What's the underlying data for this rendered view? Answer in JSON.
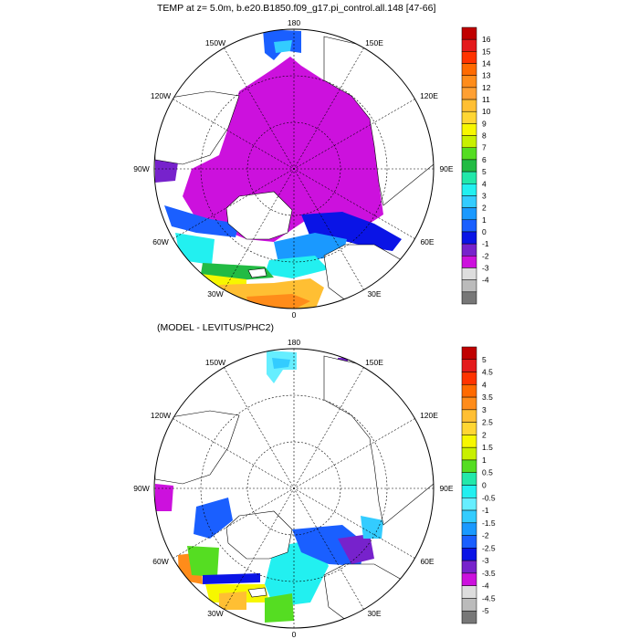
{
  "panel_top": {
    "title": "TEMP at z=   5.0m, b.e20.B1850.f09_g17.pi_control.all.148 [47-66]",
    "lon_labels": {
      "n": "180",
      "s": "0",
      "nw1": "150W",
      "ne1": "150E",
      "nw2": "120W",
      "ne2": "120E",
      "w": "90W",
      "e": "90E",
      "sw2": "60W",
      "se2": "60E",
      "sw1": "30W",
      "se1": "30E"
    },
    "colorbar": {
      "labels": [
        "16",
        "15",
        "14",
        "13",
        "12",
        "11",
        "10",
        "9",
        "8",
        "7",
        "6",
        "5",
        "4",
        "3",
        "2",
        "1",
        "0",
        "-1",
        "-2",
        "-3",
        "-4"
      ],
      "colors": [
        "#c00000",
        "#e41a1c",
        "#ff3300",
        "#ff6a00",
        "#ff8c1a",
        "#ffa033",
        "#ffbf33",
        "#ffd633",
        "#f7f700",
        "#c8f000",
        "#55dd22",
        "#22bb44",
        "#22e8aa",
        "#22f0f0",
        "#33ccff",
        "#1a99ff",
        "#1a5fff",
        "#0a14e6",
        "#7722cc",
        "#cc11dd",
        "#dddddd",
        "#bbbbbb",
        "#777777"
      ]
    }
  },
  "panel_bottom": {
    "title": "(MODEL - LEVITUS/PHC2)",
    "lon_labels": {
      "n": "180",
      "s": "0",
      "nw1": "150W",
      "ne1": "150E",
      "nw2": "120W",
      "ne2": "120E",
      "w": "90W",
      "e": "90E",
      "sw2": "60W",
      "se2": "60E",
      "sw1": "30W",
      "se1": "30E"
    },
    "colorbar": {
      "labels": [
        "5",
        "4.5",
        "4",
        "3.5",
        "3",
        "2.5",
        "2",
        "1.5",
        "1",
        "0.5",
        "0",
        "-0.5",
        "-1",
        "-1.5",
        "-2",
        "-2.5",
        "-3",
        "-3.5",
        "-4",
        "-4.5",
        "-5"
      ],
      "colors": [
        "#c00000",
        "#e41a1c",
        "#ff3300",
        "#ff6a00",
        "#ff8c1a",
        "#ffbf33",
        "#ffd633",
        "#f7f700",
        "#c8f000",
        "#55dd22",
        "#22e8aa",
        "#22f0f0",
        "#66eeff",
        "#33ccff",
        "#1a99ff",
        "#1a5fff",
        "#0a14e6",
        "#7722cc",
        "#cc11dd",
        "#dddddd",
        "#bbbbbb",
        "#777777"
      ]
    }
  }
}
